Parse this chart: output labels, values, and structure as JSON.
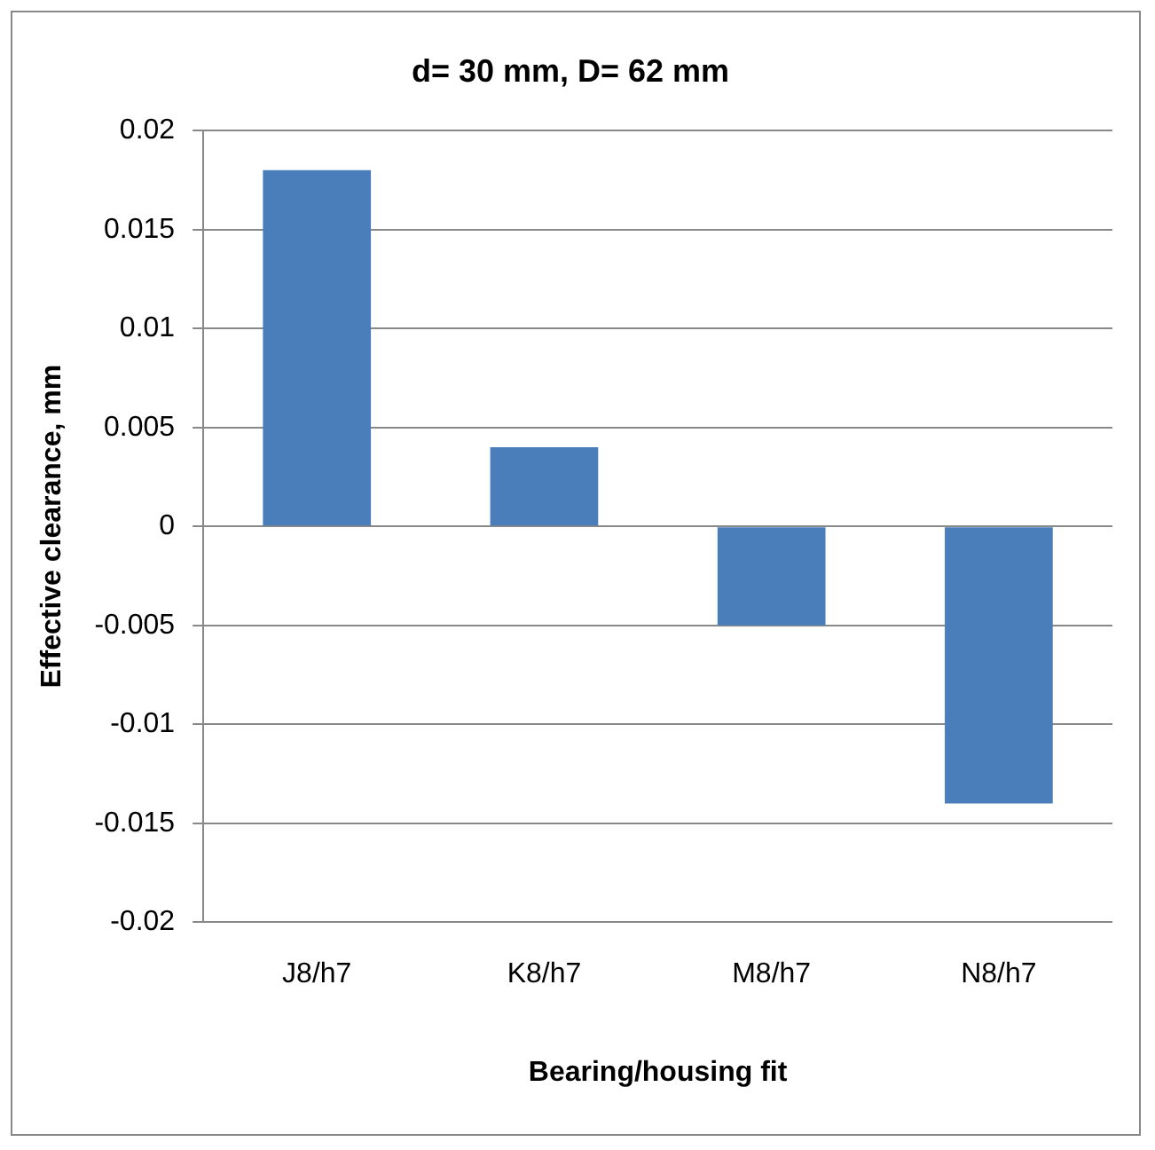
{
  "chart_data": {
    "type": "bar",
    "title": "d= 30 mm, D= 62 mm",
    "xlabel": "Bearing/housing fit",
    "ylabel": "Effective clearance, mm",
    "categories": [
      "J8/h7",
      "K8/h7",
      "M8/h7",
      "N8/h7"
    ],
    "values": [
      0.018,
      0.004,
      -0.005,
      -0.014
    ],
    "color": "#4a7ebb",
    "ylim": [
      -0.02,
      0.02
    ],
    "yticks": [
      -0.02,
      -0.015,
      -0.01,
      -0.005,
      0,
      0.005,
      0.01,
      0.015,
      0.02
    ],
    "grid": "y",
    "legend": false
  }
}
